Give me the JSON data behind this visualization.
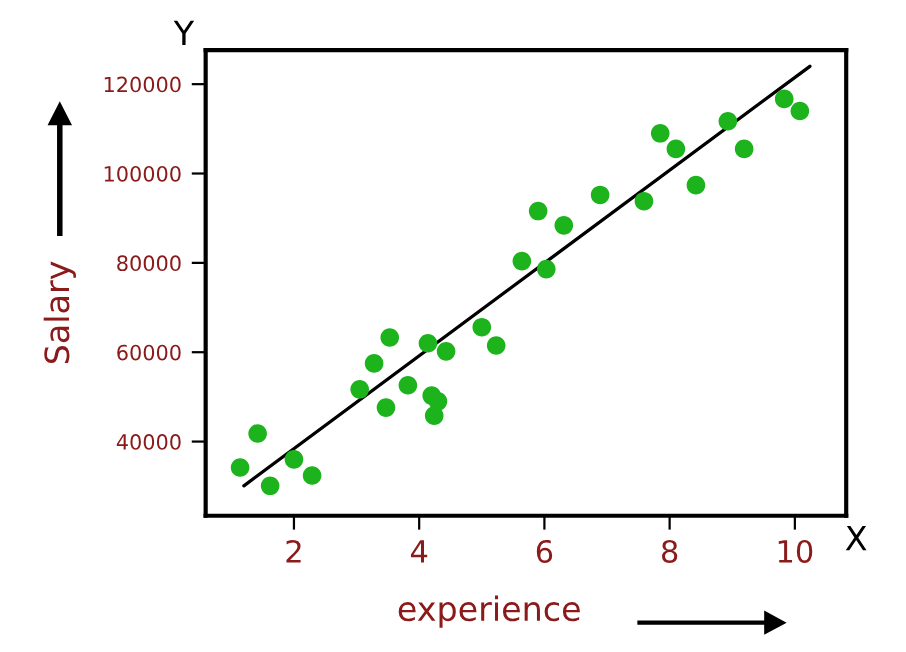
{
  "chart_data": {
    "type": "scatter",
    "xlabel": "experience",
    "ylabel": "Salary",
    "xlim": [
      0.59,
      10.82
    ],
    "ylim": [
      23400,
      127600
    ],
    "xticks": [
      2,
      4,
      6,
      8,
      10
    ],
    "yticks": [
      40000,
      60000,
      80000,
      100000,
      120000
    ],
    "grid": false,
    "legend": false,
    "marker": "circle",
    "annotations": [
      "Y",
      "X"
    ],
    "series": [
      {
        "color": "#1db31d",
        "x": [
          1.14,
          1.42,
          1.62,
          2.0,
          2.29,
          3.05,
          3.28,
          3.47,
          3.53,
          3.82,
          4.14,
          4.2,
          4.24,
          4.3,
          4.43,
          5.0,
          5.23,
          5.64,
          5.9,
          6.03,
          6.31,
          6.89,
          7.59,
          7.85,
          8.1,
          8.42,
          8.93,
          9.19,
          9.83,
          10.08
        ],
        "values": [
          34200,
          41800,
          30100,
          36000,
          32400,
          51700,
          57500,
          47600,
          63300,
          52600,
          62000,
          50300,
          45800,
          49000,
          60200,
          65600,
          61500,
          80400,
          91600,
          78600,
          88400,
          95200,
          93800,
          109000,
          105500,
          97400,
          111700,
          105500,
          116700,
          114000
        ]
      },
      {
        "type": "line",
        "color": "#000000",
        "x": [
          1.2,
          10.24
        ],
        "values": [
          30100,
          124000
        ],
        "line_style": "solid",
        "marker": "none"
      }
    ]
  }
}
